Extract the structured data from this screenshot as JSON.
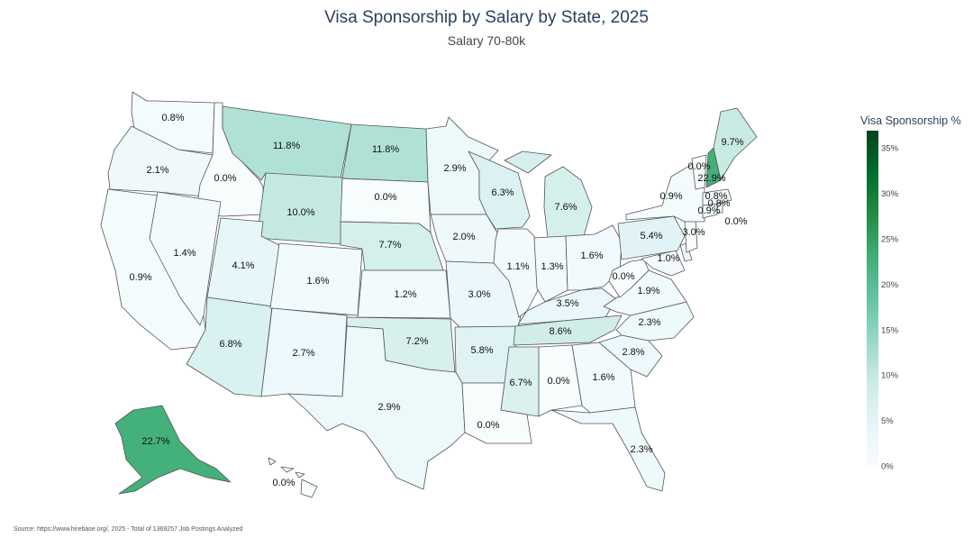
{
  "title": "Visa Sponsorship by Salary by State, 2025",
  "subtitle": "Salary 70-80k",
  "colorbar": {
    "title": "Visa Sponsorship %",
    "min": 0,
    "max": 37,
    "ticks": [
      "0%",
      "5%",
      "10%",
      "15%",
      "20%",
      "25%",
      "30%",
      "35%"
    ],
    "colors": [
      "#f7fcfd",
      "#e5f5f9",
      "#ccece6",
      "#99d8c9",
      "#66c2a4",
      "#41ae76",
      "#238b45",
      "#006d2c",
      "#00441b"
    ]
  },
  "source": "Source: https://www.hirebase.org/, 2025 - Total of 1369257 Job Postings Analyzed",
  "chart_data": {
    "type": "choropleth",
    "title": "Visa Sponsorship by Salary by State, 2025",
    "subtitle": "Salary 70-80k",
    "colorbar_title": "Visa Sponsorship %",
    "unit": "%",
    "states": [
      {
        "state": "WA",
        "value": 0.8,
        "label": "0.8%"
      },
      {
        "state": "OR",
        "value": 2.1,
        "label": "2.1%"
      },
      {
        "state": "CA",
        "value": 0.9,
        "label": "0.9%"
      },
      {
        "state": "ID",
        "value": 0.0,
        "label": "0.0%"
      },
      {
        "state": "NV",
        "value": 1.4,
        "label": "1.4%"
      },
      {
        "state": "MT",
        "value": 11.8,
        "label": "11.8%"
      },
      {
        "state": "WY",
        "value": 10.0,
        "label": "10.0%"
      },
      {
        "state": "UT",
        "value": 4.1,
        "label": "4.1%"
      },
      {
        "state": "AZ",
        "value": 6.8,
        "label": "6.8%"
      },
      {
        "state": "CO",
        "value": 1.6,
        "label": "1.6%"
      },
      {
        "state": "NM",
        "value": 2.7,
        "label": "2.7%"
      },
      {
        "state": "ND",
        "value": 11.8,
        "label": "11.8%"
      },
      {
        "state": "SD",
        "value": 0.0,
        "label": "0.0%"
      },
      {
        "state": "NE",
        "value": 7.7,
        "label": "7.7%"
      },
      {
        "state": "KS",
        "value": 1.2,
        "label": "1.2%"
      },
      {
        "state": "OK",
        "value": 7.2,
        "label": "7.2%"
      },
      {
        "state": "TX",
        "value": 2.9,
        "label": "2.9%"
      },
      {
        "state": "MN",
        "value": 2.9,
        "label": "2.9%"
      },
      {
        "state": "IA",
        "value": 2.0,
        "label": "2.0%"
      },
      {
        "state": "MO",
        "value": 3.0,
        "label": "3.0%"
      },
      {
        "state": "AR",
        "value": 5.8,
        "label": "5.8%"
      },
      {
        "state": "LA",
        "value": 0.0,
        "label": "0.0%"
      },
      {
        "state": "WI",
        "value": 6.3,
        "label": "6.3%"
      },
      {
        "state": "IL",
        "value": 1.1,
        "label": "1.1%"
      },
      {
        "state": "MI",
        "value": 7.6,
        "label": "7.6%"
      },
      {
        "state": "IN",
        "value": 1.3,
        "label": "1.3%"
      },
      {
        "state": "OH",
        "value": 1.6,
        "label": "1.6%"
      },
      {
        "state": "KY",
        "value": 3.5,
        "label": "3.5%"
      },
      {
        "state": "TN",
        "value": 8.6,
        "label": "8.6%"
      },
      {
        "state": "MS",
        "value": 6.7,
        "label": "6.7%"
      },
      {
        "state": "AL",
        "value": 0.0,
        "label": "0.0%"
      },
      {
        "state": "GA",
        "value": 1.6,
        "label": "1.6%"
      },
      {
        "state": "FL",
        "value": 2.3,
        "label": "2.3%"
      },
      {
        "state": "SC",
        "value": 2.8,
        "label": "2.8%"
      },
      {
        "state": "NC",
        "value": 2.3,
        "label": "2.3%"
      },
      {
        "state": "VA",
        "value": 1.9,
        "label": "1.9%"
      },
      {
        "state": "WV",
        "value": 0.0,
        "label": "0.0%"
      },
      {
        "state": "MD",
        "value": 1.0,
        "label": "1.0%"
      },
      {
        "state": "DE",
        "value": 3.0,
        "label": "3.0%"
      },
      {
        "state": "PA",
        "value": 5.4,
        "label": "5.4%"
      },
      {
        "state": "NJ",
        "value": 0.0,
        "label": "0.0%"
      },
      {
        "state": "NY",
        "value": 0.9,
        "label": "0.9%"
      },
      {
        "state": "CT",
        "value": 0.9,
        "label": "0.9%"
      },
      {
        "state": "RI",
        "value": 0.8,
        "label": "0.8%"
      },
      {
        "state": "MA",
        "value": 0.8,
        "label": "0.8%"
      },
      {
        "state": "VT",
        "value": 0.0,
        "label": "0.0%"
      },
      {
        "state": "NH",
        "value": 22.9,
        "label": "22.9%"
      },
      {
        "state": "ME",
        "value": 9.7,
        "label": "9.7%"
      },
      {
        "state": "AK",
        "value": 22.7,
        "label": "22.7%"
      },
      {
        "state": "HI",
        "value": 0.0,
        "label": "0.0%"
      }
    ]
  }
}
